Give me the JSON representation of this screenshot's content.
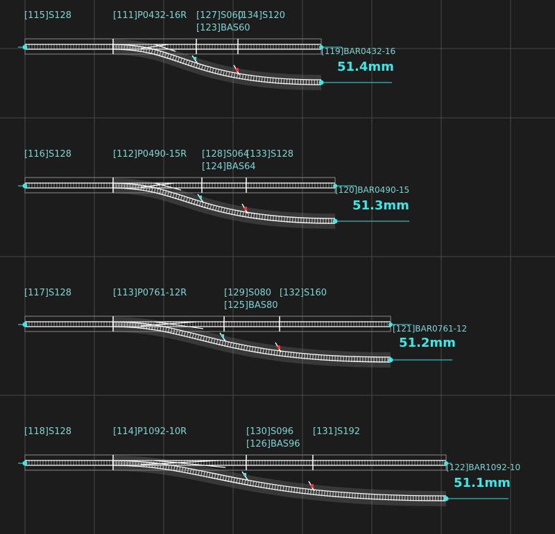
{
  "colors": {
    "background": "#1c1c1c",
    "grid": "#4a4a4a",
    "label": "#7fd4d4",
    "measure": "#3fe6e6",
    "rail": "#ffffff",
    "marker": "#ff3030"
  },
  "layouts": [
    {
      "labels": {
        "s1": "[115]S128",
        "p": "[111]P0432-16R",
        "s2a": "[127]S060",
        "s2b": "[134]S120",
        "bas": "[123]BAS60",
        "bar": "[119]BAR0432-16"
      },
      "measurement": "51.4mm"
    },
    {
      "labels": {
        "s1": "[116]S128",
        "p": "[112]P0490-15R",
        "s2a": "[128]S064",
        "s2b": "[133]S128",
        "bas": "[124]BAS64",
        "bar": "[120]BAR0490-15"
      },
      "measurement": "51.3mm"
    },
    {
      "labels": {
        "s1": "[117]S128",
        "p": "[113]P0761-12R",
        "s2a": "[129]S080",
        "s2b": "[132]S160",
        "bas": "[125]BAS80",
        "bar": "[121]BAR0761-12"
      },
      "measurement": "51.2mm"
    },
    {
      "labels": {
        "s1": "[118]S128",
        "p": "[114]P1092-10R",
        "s2a": "[130]S096",
        "s2b": "[131]S192",
        "bas": "[126]BAS96",
        "bar": "[122]BAR1092-10"
      },
      "measurement": "51.1mm"
    }
  ]
}
